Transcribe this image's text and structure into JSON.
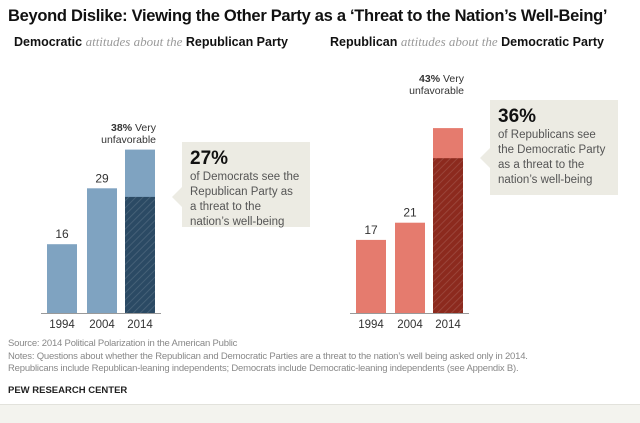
{
  "title": "Beyond Dislike: Viewing the Other Party as a ‘Threat to the Nation’s Well-Being’",
  "chart_data": [
    {
      "type": "bar",
      "subtitle": {
        "group": "Democratic",
        "middle": "attitudes about the",
        "target": "Republican Party"
      },
      "categories": [
        "1994",
        "2004",
        "2014"
      ],
      "series": [
        {
          "name": "Very unfavorable",
          "values": [
            16,
            29,
            38
          ]
        },
        {
          "name": "Threat to the nation's well-being",
          "values": [
            null,
            null,
            27
          ]
        }
      ],
      "value_labels": [
        "16",
        "29"
      ],
      "annotation": {
        "bold": "38%",
        "text": "Very unfavorable"
      },
      "callout": {
        "big": "27%",
        "text": "of Democrats see the Republican Party as a threat to the nation’s well-being"
      },
      "colors": {
        "light": "#7fa3c1",
        "dark": "#2b4a64"
      }
    },
    {
      "type": "bar",
      "subtitle": {
        "group": "Republican",
        "middle": "attitudes about the",
        "target": "Democratic Party"
      },
      "categories": [
        "1994",
        "2004",
        "2014"
      ],
      "series": [
        {
          "name": "Very unfavorable",
          "values": [
            17,
            21,
            43
          ]
        },
        {
          "name": "Threat to the nation's well-being",
          "values": [
            null,
            null,
            36
          ]
        }
      ],
      "value_labels": [
        "17",
        "21"
      ],
      "annotation": {
        "bold": "43%",
        "text": "Very unfavorable"
      },
      "callout": {
        "big": "36%",
        "text": "of Republicans see the Democratic Party as a threat to the nation’s well-being"
      },
      "colors": {
        "light": "#e57b6e",
        "dark": "#8c2a1e"
      }
    }
  ],
  "footer": {
    "source": "Source: 2014 Political Polarization in the American Public",
    "notes1": "Notes: Questions about whether the Republican and Democratic Parties are a threat to the nation’s well being asked only in 2014.",
    "notes2": "Republicans include Republican-leaning independents; Democrats include Democratic-leaning independents (see Appendix B).",
    "org": "PEW RESEARCH CENTER"
  }
}
